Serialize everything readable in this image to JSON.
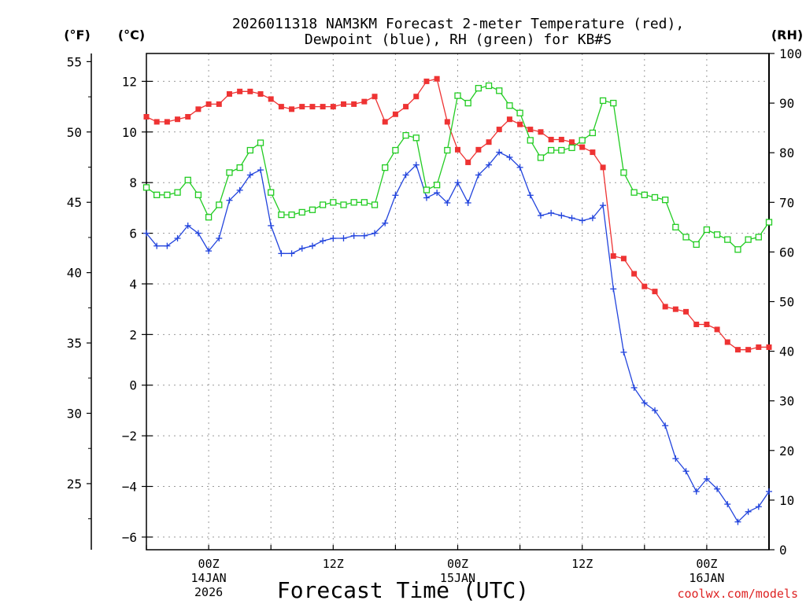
{
  "chart_data": {
    "type": "line",
    "title": "2026011318 NAM3KM Forecast 2-meter Temperature (red),",
    "subtitle": "Dewpoint (blue), RH (green) for KB#S",
    "xlabel": "Forecast Time (UTC)",
    "units": {
      "fahrenheit": "(°F)",
      "celsius": "(°C)",
      "rh": "(RH)"
    },
    "watermark": "coolwx.com/models",
    "x_range": [
      -6,
      54
    ],
    "x_ticks": [
      {
        "hour": 0,
        "labels": [
          "00Z",
          "14JAN",
          "2026"
        ]
      },
      {
        "hour": 12,
        "labels": [
          "12Z"
        ]
      },
      {
        "hour": 24,
        "labels": [
          "00Z",
          "15JAN"
        ]
      },
      {
        "hour": 36,
        "labels": [
          "12Z"
        ]
      },
      {
        "hour": 48,
        "labels": [
          "00Z",
          "16JAN"
        ]
      }
    ],
    "y_celsius": {
      "min": -6.5,
      "max": 13.1,
      "ticks": [
        12,
        10,
        8,
        6,
        4,
        2,
        0,
        -2,
        -4,
        -6
      ]
    },
    "y_fahrenheit": {
      "ticks": [
        55,
        50,
        45,
        40,
        35,
        30,
        25
      ]
    },
    "y_rh": {
      "min": 0,
      "max": 100,
      "ticks": [
        100,
        90,
        80,
        70,
        60,
        50,
        40,
        30,
        20,
        10,
        0
      ]
    },
    "colors": {
      "temperature": "#ee3333",
      "dewpoint": "#2244dd",
      "rh": "#22cc22",
      "grid": "#999999"
    },
    "hours": [
      -6,
      -5,
      -4,
      -3,
      -2,
      -1,
      0,
      1,
      2,
      3,
      4,
      5,
      6,
      7,
      8,
      9,
      10,
      11,
      12,
      13,
      14,
      15,
      16,
      17,
      18,
      19,
      20,
      21,
      22,
      23,
      24,
      25,
      26,
      27,
      28,
      29,
      30,
      31,
      32,
      33,
      34,
      35,
      36,
      37,
      38,
      39,
      40,
      41,
      42,
      43,
      44,
      45,
      46,
      47,
      48,
      49,
      50,
      51,
      52,
      53,
      54
    ],
    "series": [
      {
        "name": "Temperature",
        "unit": "C",
        "color": "#ee3333",
        "marker": "filled-square",
        "values": [
          10.6,
          10.4,
          10.4,
          10.5,
          10.6,
          10.9,
          11.1,
          11.1,
          11.5,
          11.6,
          11.6,
          11.5,
          11.3,
          11.0,
          10.9,
          11.0,
          11.0,
          11.0,
          11.0,
          11.1,
          11.1,
          11.2,
          11.4,
          10.4,
          10.7,
          11.0,
          11.4,
          12.0,
          12.1,
          10.4,
          9.3,
          8.8,
          9.3,
          9.6,
          10.1,
          10.5,
          10.3,
          10.1,
          10.0,
          9.7,
          9.7,
          9.6,
          9.4,
          9.2,
          8.6,
          5.1,
          5.0,
          4.4,
          3.9,
          3.7,
          3.1,
          3.0,
          2.9,
          2.4,
          2.4,
          2.2,
          1.7,
          1.4,
          1.4,
          1.5,
          1.5
        ]
      },
      {
        "name": "Dewpoint",
        "unit": "C",
        "color": "#2244dd",
        "marker": "plus",
        "values": [
          6.0,
          5.5,
          5.5,
          5.8,
          6.3,
          6.0,
          5.3,
          5.8,
          7.3,
          7.7,
          8.3,
          8.5,
          6.3,
          5.2,
          5.2,
          5.4,
          5.5,
          5.7,
          5.8,
          5.8,
          5.9,
          5.9,
          6.0,
          6.4,
          7.5,
          8.3,
          8.7,
          7.4,
          7.6,
          7.2,
          8.0,
          7.2,
          8.3,
          8.7,
          9.2,
          9.0,
          8.6,
          7.5,
          6.7,
          6.8,
          6.7,
          6.6,
          6.5,
          6.6,
          7.1,
          3.8,
          1.3,
          -0.1,
          -0.7,
          -1.0,
          -1.6,
          -2.9,
          -3.4,
          -4.2,
          -3.7,
          -4.1,
          -4.7,
          -5.4,
          -5.0,
          -4.8,
          -4.2
        ]
      },
      {
        "name": "RH",
        "unit": "%",
        "color": "#22cc22",
        "marker": "open-square",
        "values": [
          73.0,
          71.5,
          71.5,
          72.0,
          74.5,
          71.5,
          67.0,
          69.5,
          76.0,
          77.0,
          80.5,
          82.0,
          72.0,
          67.5,
          67.5,
          68.0,
          68.5,
          69.5,
          70.0,
          69.5,
          70.0,
          70.0,
          69.5,
          77.0,
          80.5,
          83.5,
          83.0,
          72.5,
          73.5,
          80.5,
          91.5,
          90.0,
          93.0,
          93.5,
          92.5,
          89.5,
          88.0,
          82.5,
          79.0,
          80.5,
          80.5,
          81.0,
          82.5,
          84.0,
          90.5,
          90.0,
          76.0,
          72.0,
          71.5,
          71.0,
          70.5,
          65.0,
          63.0,
          61.5,
          64.5,
          63.5,
          62.5,
          60.5,
          62.5,
          63.0,
          66.0
        ]
      }
    ]
  }
}
